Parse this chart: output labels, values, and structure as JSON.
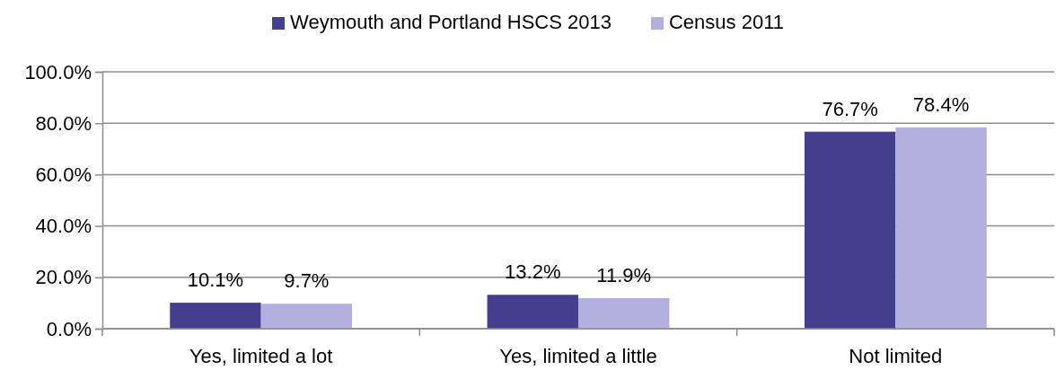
{
  "chart_data": {
    "type": "bar",
    "categories": [
      "Yes, limited a lot",
      "Yes, limited a little",
      "Not limited"
    ],
    "series": [
      {
        "name": "Weymouth and Portland HSCS 2013",
        "color": "#433e8e",
        "values": [
          10.1,
          13.2,
          76.7
        ],
        "value_labels": [
          "10.1%",
          "13.2%",
          "76.7%"
        ]
      },
      {
        "name": "Census 2011",
        "color": "#b3b0df",
        "values": [
          9.7,
          11.9,
          78.4
        ],
        "value_labels": [
          "9.7%",
          "11.9%",
          "78.4%"
        ]
      }
    ],
    "ylim": [
      0,
      100
    ],
    "yticks": [
      {
        "value": 0,
        "label": "0.0%"
      },
      {
        "value": 20,
        "label": "20.0%"
      },
      {
        "value": 40,
        "label": "40.0%"
      },
      {
        "value": 60,
        "label": "60.0%"
      },
      {
        "value": 80,
        "label": "80.0%"
      },
      {
        "value": 100,
        "label": "100.0%"
      }
    ],
    "grid": "y",
    "legend": "top"
  }
}
